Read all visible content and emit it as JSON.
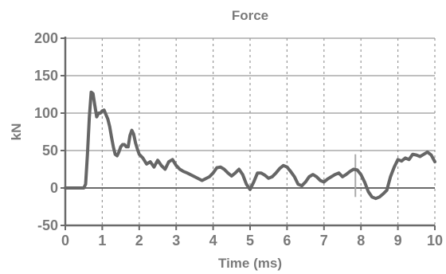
{
  "chart_data": {
    "type": "line",
    "title": "Force",
    "xlabel": "Time (ms)",
    "ylabel": "kN",
    "xlim": [
      0,
      10
    ],
    "ylim": [
      -50,
      200
    ],
    "x_ticks": [
      0,
      1,
      2,
      3,
      4,
      5,
      6,
      7,
      8,
      9,
      10
    ],
    "y_ticks": [
      -50,
      0,
      50,
      100,
      150,
      200
    ],
    "grid": true,
    "legend": "none",
    "colors": {
      "line": "#666666",
      "grid": "#999999",
      "axis": "#6a6a6a",
      "text": "#7a7a7a",
      "marker": "#aaaaaa"
    },
    "series": [
      {
        "values": [
          [
            0.0,
            0
          ],
          [
            0.5,
            0
          ],
          [
            0.55,
            5
          ],
          [
            0.6,
            45
          ],
          [
            0.65,
            95
          ],
          [
            0.7,
            128
          ],
          [
            0.75,
            126
          ],
          [
            0.8,
            110
          ],
          [
            0.85,
            95
          ],
          [
            0.9,
            100
          ],
          [
            0.95,
            100
          ],
          [
            1.0,
            103
          ],
          [
            1.05,
            104
          ],
          [
            1.1,
            98
          ],
          [
            1.15,
            92
          ],
          [
            1.2,
            82
          ],
          [
            1.25,
            68
          ],
          [
            1.3,
            55
          ],
          [
            1.35,
            45
          ],
          [
            1.4,
            43
          ],
          [
            1.45,
            48
          ],
          [
            1.5,
            55
          ],
          [
            1.55,
            58
          ],
          [
            1.6,
            58
          ],
          [
            1.65,
            55
          ],
          [
            1.7,
            55
          ],
          [
            1.75,
            70
          ],
          [
            1.8,
            77
          ],
          [
            1.85,
            72
          ],
          [
            1.9,
            60
          ],
          [
            1.95,
            52
          ],
          [
            2.0,
            45
          ],
          [
            2.1,
            40
          ],
          [
            2.2,
            32
          ],
          [
            2.3,
            35
          ],
          [
            2.4,
            28
          ],
          [
            2.5,
            37
          ],
          [
            2.6,
            30
          ],
          [
            2.7,
            25
          ],
          [
            2.8,
            35
          ],
          [
            2.9,
            38
          ],
          [
            3.0,
            30
          ],
          [
            3.1,
            25
          ],
          [
            3.2,
            22
          ],
          [
            3.3,
            20
          ],
          [
            3.5,
            15
          ],
          [
            3.7,
            10
          ],
          [
            3.9,
            15
          ],
          [
            4.0,
            20
          ],
          [
            4.1,
            27
          ],
          [
            4.2,
            28
          ],
          [
            4.3,
            25
          ],
          [
            4.4,
            20
          ],
          [
            4.5,
            16
          ],
          [
            4.6,
            20
          ],
          [
            4.7,
            25
          ],
          [
            4.8,
            18
          ],
          [
            4.9,
            5
          ],
          [
            5.0,
            -2
          ],
          [
            5.1,
            8
          ],
          [
            5.2,
            20
          ],
          [
            5.3,
            20
          ],
          [
            5.4,
            17
          ],
          [
            5.5,
            13
          ],
          [
            5.6,
            15
          ],
          [
            5.7,
            20
          ],
          [
            5.8,
            26
          ],
          [
            5.9,
            30
          ],
          [
            6.0,
            28
          ],
          [
            6.1,
            22
          ],
          [
            6.2,
            15
          ],
          [
            6.3,
            5
          ],
          [
            6.4,
            3
          ],
          [
            6.5,
            8
          ],
          [
            6.6,
            15
          ],
          [
            6.7,
            18
          ],
          [
            6.8,
            15
          ],
          [
            6.9,
            10
          ],
          [
            7.0,
            8
          ],
          [
            7.1,
            12
          ],
          [
            7.2,
            15
          ],
          [
            7.3,
            18
          ],
          [
            7.4,
            20
          ],
          [
            7.5,
            15
          ],
          [
            7.6,
            18
          ],
          [
            7.7,
            22
          ],
          [
            7.8,
            25
          ],
          [
            7.9,
            24
          ],
          [
            8.0,
            18
          ],
          [
            8.1,
            8
          ],
          [
            8.2,
            -5
          ],
          [
            8.3,
            -12
          ],
          [
            8.4,
            -14
          ],
          [
            8.5,
            -12
          ],
          [
            8.6,
            -8
          ],
          [
            8.7,
            -3
          ],
          [
            8.8,
            15
          ],
          [
            8.9,
            28
          ],
          [
            9.0,
            38
          ],
          [
            9.1,
            36
          ],
          [
            9.2,
            40
          ],
          [
            9.3,
            38
          ],
          [
            9.4,
            45
          ],
          [
            9.5,
            44
          ],
          [
            9.6,
            42
          ],
          [
            9.7,
            45
          ],
          [
            9.8,
            48
          ],
          [
            9.9,
            44
          ],
          [
            10.0,
            35
          ]
        ]
      }
    ],
    "annotations": [
      {
        "type": "vertical-marker",
        "x": 7.85,
        "y_range": [
          -12,
          45
        ]
      }
    ]
  }
}
